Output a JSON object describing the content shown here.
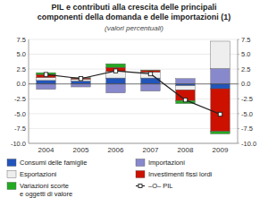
{
  "chart_data": {
    "type": "bar",
    "title": "PIL e contributi alla crescita delle principali\ncomponenti della domanda e delle importazioni (1)",
    "subtitle": "(valori percentuali)",
    "categories": [
      "2004",
      "2005",
      "2006",
      "2007",
      "2008",
      "2009"
    ],
    "series": [
      {
        "name": "Consumi delle famiglie",
        "color": "#2255bb",
        "values": [
          0.6,
          0.5,
          1.0,
          1.0,
          -0.3,
          -0.8
        ]
      },
      {
        "name": "Importazioni",
        "color": "#8888cc",
        "values": [
          -0.9,
          -0.5,
          -1.5,
          -1.2,
          0.9,
          2.6
        ]
      },
      {
        "name": "Esportazioni",
        "color": "#eeeeee",
        "values": [
          0.5,
          0.3,
          1.1,
          1.0,
          -0.7,
          4.6
        ]
      },
      {
        "name": "Investimenti fissi lordi",
        "color": "#cc1100",
        "values": [
          0.5,
          0.2,
          0.7,
          0.3,
          -1.8,
          -7.2
        ]
      },
      {
        "name": "Variazioni scorte\ne oggetti di valore",
        "color": "#22aa22",
        "values": [
          0.3,
          0.05,
          0.6,
          0.05,
          -0.5,
          -0.4
        ]
      },
      {
        "name": "–O– PIL",
        "type": "line",
        "color": "#222222",
        "marker": "square",
        "values": [
          1.6,
          0.9,
          2.2,
          1.7,
          -2.7,
          -5.1
        ]
      }
    ],
    "stacked": true,
    "ylim": [
      -10.0,
      7.5
    ],
    "yticks": [
      {
        "value": -10.0,
        "label": "-10.0"
      },
      -7.5,
      {
        "value": -5.0,
        "label": "-5.0"
      },
      -2.5,
      {
        "value": 0.0,
        "label": "0.0"
      },
      2.5,
      {
        "value": 5.0,
        "label": "5.0"
      },
      7.5
    ],
    "y2lim": [
      -10.0,
      7.5
    ],
    "y2ticks": [
      {
        "value": -10.0,
        "label": "-10.0"
      },
      -7.5,
      {
        "value": -5.0,
        "label": "-5.0"
      },
      -2.5,
      {
        "value": 0.0,
        "label": "0.0"
      },
      2.5,
      {
        "value": 5.0,
        "label": "5.0"
      },
      7.5
    ],
    "grid": true,
    "legend": "bottom"
  }
}
